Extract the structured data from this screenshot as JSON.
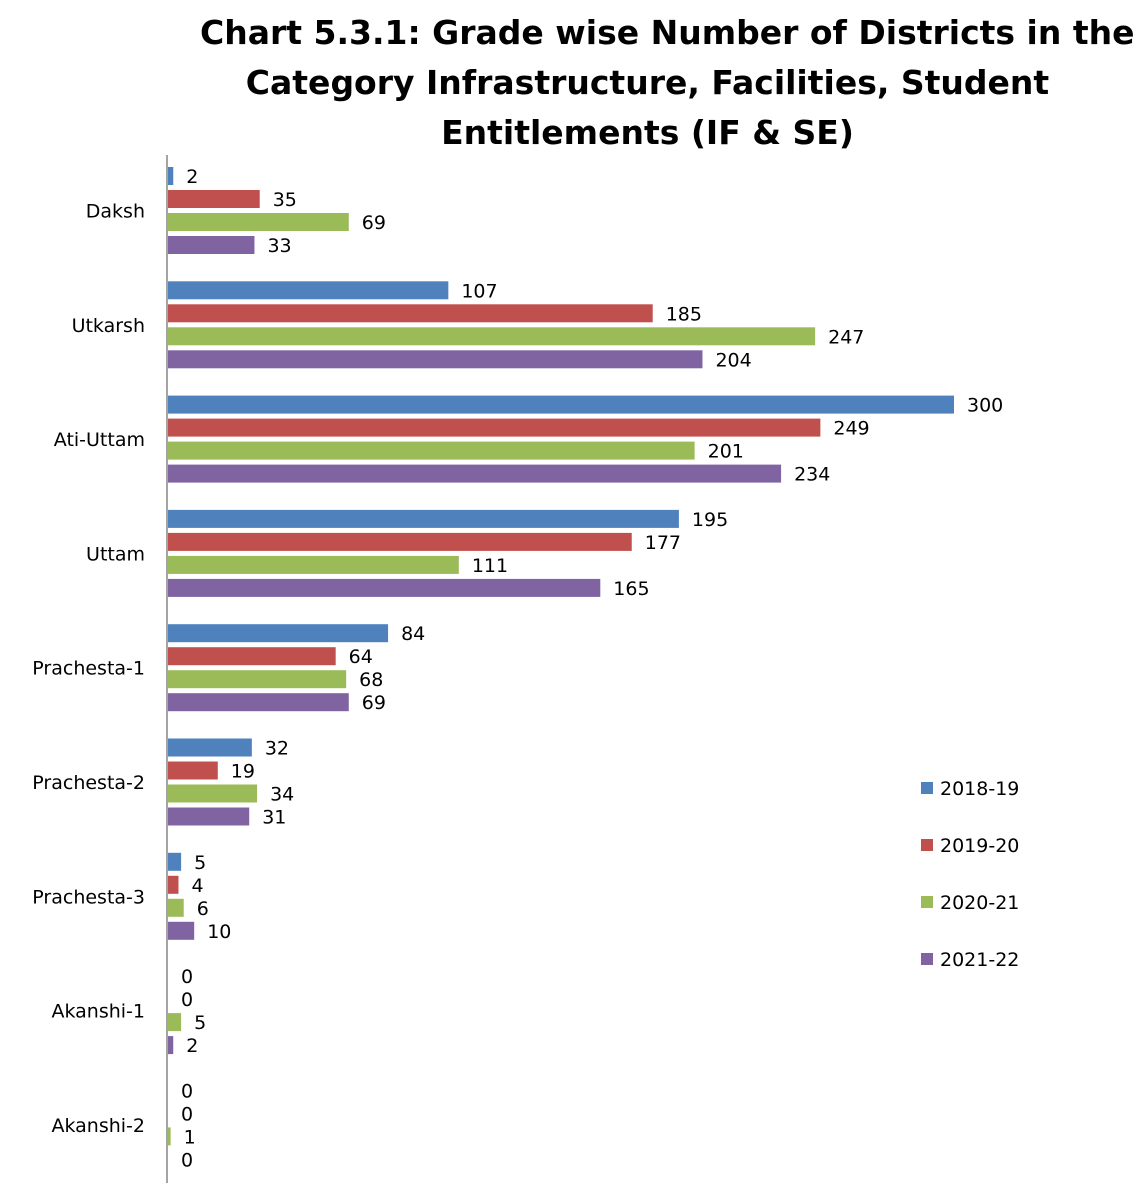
{
  "chart_data": {
    "type": "bar",
    "orientation": "horizontal",
    "title": "Chart 5.3.1: Grade wise Number of Districts in the Category Infrastructure, Facilities, Student Entitlements (IF & SE)",
    "title_lines": [
      "Chart 5.3.1: Grade wise Number of Districts in the",
      "Category Infrastructure, Facilities, Student",
      "Entitlements (IF & SE)"
    ],
    "categories": [
      "Daksh",
      "Utkarsh",
      "Ati-Uttam",
      "Uttam",
      "Prachesta-1",
      "Prachesta-2",
      "Prachesta-3",
      "Akanshi-1",
      "Akanshi-2"
    ],
    "series": [
      {
        "name": "2018-19",
        "color": "#4F81BD",
        "values": [
          2,
          107,
          300,
          195,
          84,
          32,
          5,
          0,
          0
        ]
      },
      {
        "name": "2019-20",
        "color": "#C0504D",
        "values": [
          35,
          185,
          249,
          177,
          64,
          19,
          4,
          0,
          0
        ]
      },
      {
        "name": "2020-21",
        "color": "#9BBB59",
        "values": [
          69,
          247,
          201,
          111,
          68,
          34,
          6,
          5,
          1
        ]
      },
      {
        "name": "2021-22",
        "color": "#8064A2",
        "values": [
          33,
          204,
          234,
          165,
          69,
          31,
          10,
          2,
          0
        ]
      }
    ],
    "xlim": [
      0,
      300
    ],
    "xlabel": "",
    "ylabel": "",
    "grid": false,
    "legend": "right"
  }
}
